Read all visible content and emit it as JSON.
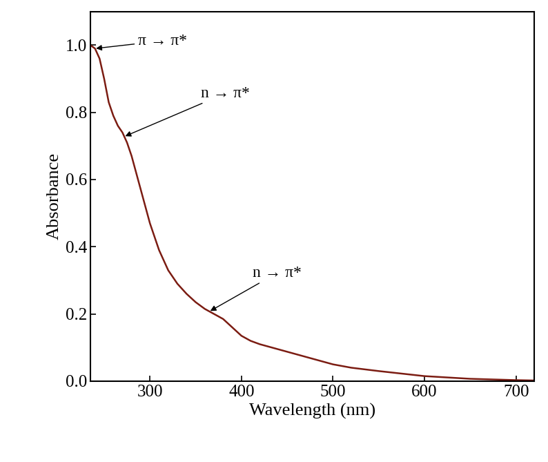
{
  "chart_data": {
    "type": "line",
    "x_label": "Wavelength (nm)",
    "y_label": "Absorbance",
    "x": [
      235,
      240,
      245,
      250,
      255,
      260,
      265,
      270,
      275,
      280,
      290,
      300,
      310,
      320,
      330,
      340,
      350,
      360,
      370,
      380,
      390,
      400,
      410,
      420,
      440,
      460,
      480,
      500,
      520,
      550,
      600,
      650,
      700,
      720
    ],
    "values": [
      1.0,
      0.99,
      0.96,
      0.9,
      0.83,
      0.79,
      0.76,
      0.74,
      0.71,
      0.67,
      0.57,
      0.47,
      0.39,
      0.33,
      0.29,
      0.26,
      0.235,
      0.215,
      0.2,
      0.185,
      0.16,
      0.135,
      0.12,
      0.11,
      0.095,
      0.08,
      0.065,
      0.05,
      0.04,
      0.03,
      0.015,
      0.007,
      0.003,
      0.002
    ],
    "color": "#7b1c12",
    "xlim": [
      235,
      720
    ],
    "xticks": [
      300,
      400,
      500,
      600,
      700
    ],
    "ylim": [
      0,
      1.1
    ],
    "yticks": [
      {
        "value": 0,
        "label": "0.0"
      },
      0.2,
      0.4,
      0.6,
      0.8,
      {
        "value": 1,
        "label": "1.0"
      }
    ],
    "annotations": [
      {
        "text": "π → π*",
        "x": 240
      },
      {
        "text": "n → π*",
        "x": 272
      },
      {
        "text": "n → π*",
        "x": 365
      }
    ],
    "grid": false
  }
}
